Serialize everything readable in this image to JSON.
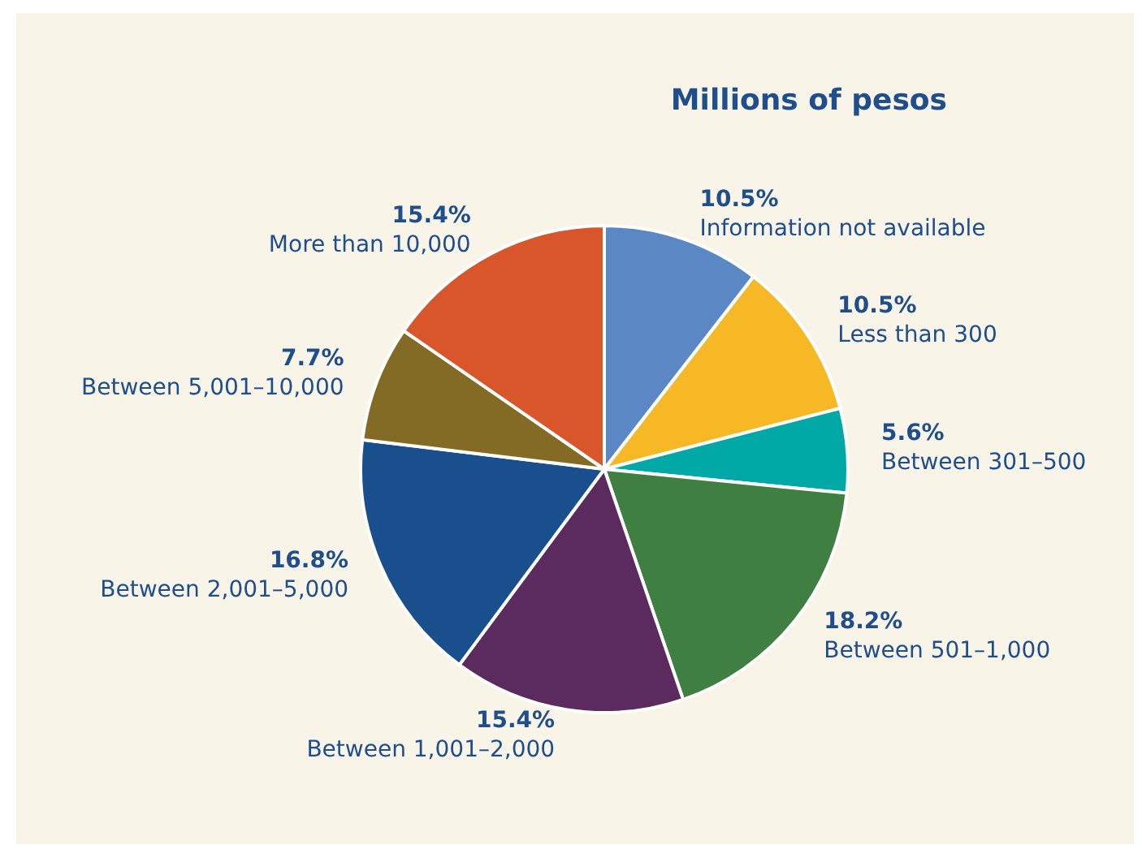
{
  "chart_data": {
    "type": "pie",
    "title": "Millions of pesos",
    "categories": [
      "Information not available",
      "Less than 300",
      "Between 301–500",
      "Between 501–1,000",
      "Between 1,001–2,000",
      "Between 2,001–5,000",
      "Between 5,001–10,000",
      "More than 10,000"
    ],
    "values": [
      10.5,
      10.5,
      5.6,
      18.2,
      15.4,
      16.8,
      7.7,
      15.4
    ],
    "value_labels": [
      "10.5%",
      "10.5%",
      "5.6%",
      "18.2%",
      "15.4%",
      "16.8%",
      "7.7%",
      "15.4%"
    ],
    "colors": [
      "#5b87c5",
      "#f6b925",
      "#00a9a6",
      "#3f7f42",
      "#5b2a5e",
      "#1a4f8e",
      "#836b26",
      "#d9562b"
    ],
    "legend": false
  }
}
